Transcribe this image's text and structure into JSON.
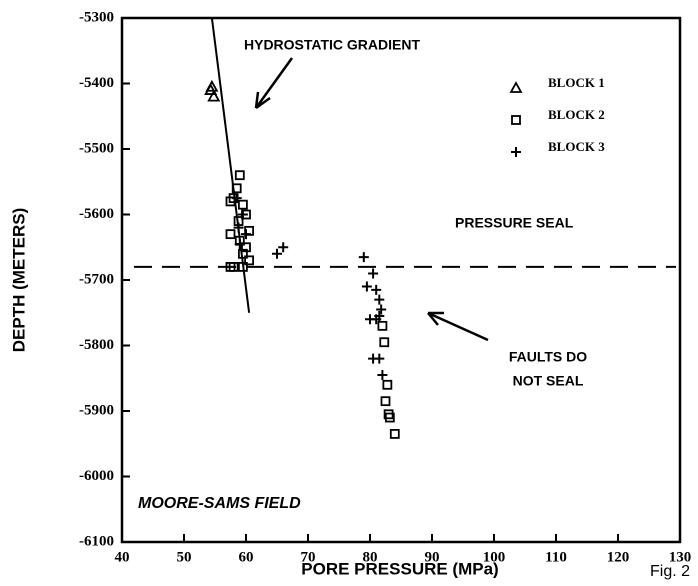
{
  "chart_data": {
    "type": "scatter",
    "xlabel": "PORE PRESSURE (MPa)",
    "ylabel": "DEPTH (METERS)",
    "xlim": [
      40,
      130
    ],
    "xticks": [
      40,
      50,
      60,
      70,
      80,
      90,
      100,
      110,
      120,
      130
    ],
    "ylim": [
      -6100,
      -5300
    ],
    "yticks": [
      -6100,
      -6000,
      -5900,
      -5800,
      -5700,
      -5600,
      -5500,
      -5400,
      -5300
    ],
    "annotations": [
      "HYDROSTATIC GRADIENT",
      "PRESSURE SEAL",
      "FAULTS  DO",
      "NOT SEAL",
      "MOORE-SAMS FIELD",
      "Fig. 2"
    ],
    "pressure_seal": -5680,
    "hydrostatic_line": {
      "x": [
        54.5,
        60.5
      ],
      "y": [
        -5300,
        -5750
      ]
    },
    "series": [
      {
        "name": "BLOCK 1",
        "marker": "triangle",
        "color": "#000",
        "x": [
          54.5,
          54.8,
          54.3
        ],
        "values": [
          -5405,
          -5420,
          -5410
        ]
      },
      {
        "name": "BLOCK 2",
        "marker": "square",
        "color": "#000",
        "x": [
          59,
          58.5,
          58,
          57.5,
          59.5,
          60,
          58.8,
          60.5,
          57.5,
          59,
          60,
          59.5,
          60.5,
          58,
          57.5,
          59.5,
          82,
          82.3,
          82.8,
          82.5,
          83,
          83.2,
          84
        ],
        "values": [
          -5540,
          -5560,
          -5575,
          -5580,
          -5585,
          -5600,
          -5610,
          -5625,
          -5630,
          -5640,
          -5650,
          -5660,
          -5670,
          -5680,
          -5680,
          -5680,
          -5770,
          -5795,
          -5860,
          -5885,
          -5905,
          -5910,
          -5935
        ]
      },
      {
        "name": "BLOCK 3",
        "marker": "plus",
        "color": "#000",
        "x": [
          58.5,
          59.5,
          58.8,
          60,
          59,
          65,
          66,
          79,
          80.5,
          79.5,
          81,
          81.5,
          81.8,
          81.5,
          80,
          81,
          80.5,
          81.5,
          82
        ],
        "values": [
          -5575,
          -5600,
          -5620,
          -5630,
          -5645,
          -5660,
          -5650,
          -5665,
          -5690,
          -5710,
          -5715,
          -5730,
          -5745,
          -5755,
          -5760,
          -5760,
          -5820,
          -5820,
          -5845
        ]
      }
    ]
  }
}
